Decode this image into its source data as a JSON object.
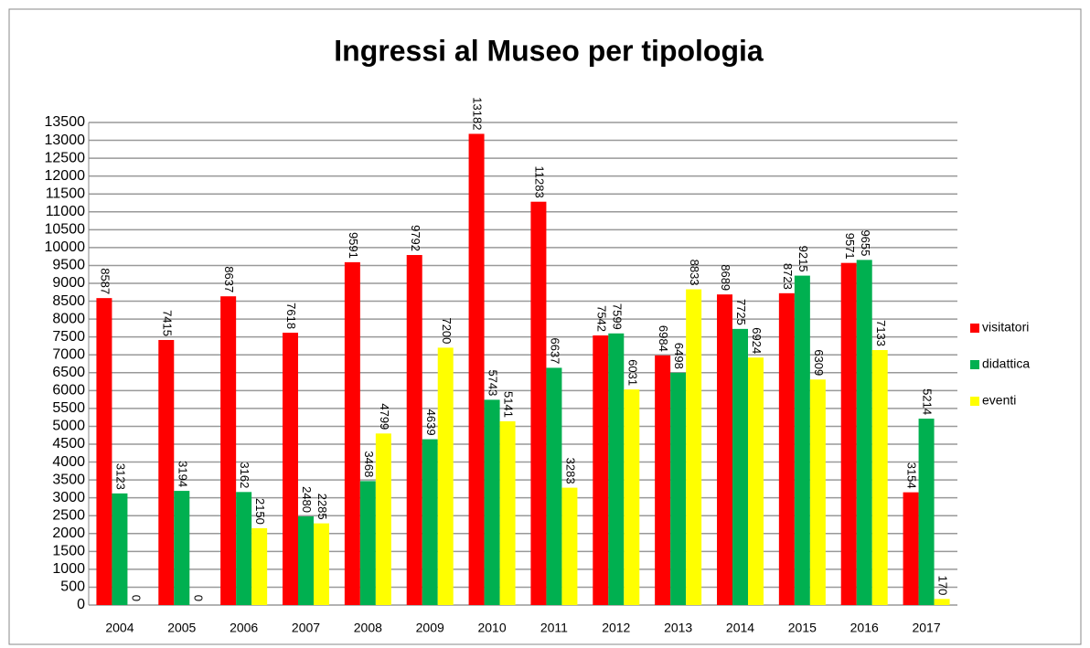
{
  "chart_data": {
    "type": "bar",
    "title": "Ingressi al Museo per tipologia",
    "categories": [
      "2004",
      "2005",
      "2006",
      "2007",
      "2008",
      "2009",
      "2010",
      "2011",
      "2012",
      "2013",
      "2014",
      "2015",
      "2016",
      "2017"
    ],
    "series": [
      {
        "name": "visitatori",
        "color": "#ff0000",
        "values": [
          8587,
          7415,
          8637,
          7618,
          9591,
          9792,
          13182,
          11283,
          7542,
          6984,
          8689,
          8723,
          9571,
          3154
        ]
      },
      {
        "name": "didattica",
        "color": "#00b050",
        "values": [
          3123,
          3194,
          3162,
          2480,
          3468,
          4639,
          5743,
          6637,
          7599,
          6498,
          7725,
          9215,
          9655,
          5214
        ]
      },
      {
        "name": "eventi",
        "color": "#ffff00",
        "values": [
          0,
          0,
          2150,
          2285,
          4799,
          7200,
          5141,
          3283,
          6031,
          8833,
          6924,
          6309,
          7133,
          170
        ]
      }
    ],
    "ylim": [
      0,
      13500
    ],
    "yticks": [
      0,
      500,
      1000,
      1500,
      2000,
      2500,
      3000,
      3500,
      4000,
      4500,
      5000,
      5500,
      6000,
      6500,
      7000,
      7500,
      8000,
      8500,
      9000,
      9500,
      10000,
      10500,
      11000,
      11500,
      12000,
      12500,
      13000,
      13500
    ],
    "grid": true,
    "legend": "right"
  }
}
